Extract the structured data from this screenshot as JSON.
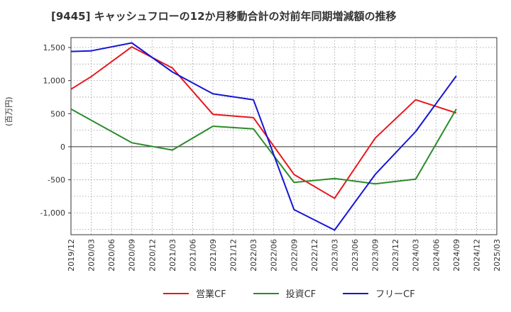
{
  "chart_data": {
    "type": "line",
    "title": "[9445]  キャッシュフローの12か月移動合計の対前年同期増減額の推移",
    "ylabel": "(百万円)",
    "xlabel": "",
    "ylim": [
      -1330,
      1650
    ],
    "yticks": [
      1500,
      1000,
      500,
      0,
      -500,
      -1000
    ],
    "ytick_labels": [
      "1,500",
      "1,000",
      "500",
      "0",
      "-500",
      "-1,000"
    ],
    "categories": [
      "2019/12",
      "2020/03",
      "2020/06",
      "2020/09",
      "2020/12",
      "2021/03",
      "2021/06",
      "2021/09",
      "2021/12",
      "2022/03",
      "2022/06",
      "2022/09",
      "2022/12",
      "2023/03",
      "2023/06",
      "2023/09",
      "2023/12",
      "2024/03",
      "2024/06",
      "2024/09",
      "2024/12",
      "2025/03"
    ],
    "grid": true,
    "legend_position": "bottom",
    "series": [
      {
        "name": "営業CF",
        "color": "#e8161b",
        "values": [
          870,
          1060,
          null,
          1510,
          null,
          1190,
          null,
          490,
          null,
          440,
          null,
          -420,
          null,
          -780,
          null,
          130,
          null,
          710,
          null,
          510,
          null,
          null
        ]
      },
      {
        "name": "投資CF",
        "color": "#2a8c2a",
        "values": [
          570,
          400,
          null,
          60,
          null,
          -50,
          null,
          310,
          null,
          270,
          null,
          -540,
          null,
          -480,
          null,
          -560,
          null,
          -490,
          null,
          570,
          null,
          null
        ]
      },
      {
        "name": "フリーCF",
        "color": "#1515d6",
        "values": [
          1440,
          1450,
          null,
          1570,
          null,
          1130,
          null,
          800,
          null,
          710,
          null,
          -950,
          null,
          -1260,
          null,
          -420,
          null,
          230,
          null,
          1070,
          null,
          null
        ]
      }
    ]
  }
}
